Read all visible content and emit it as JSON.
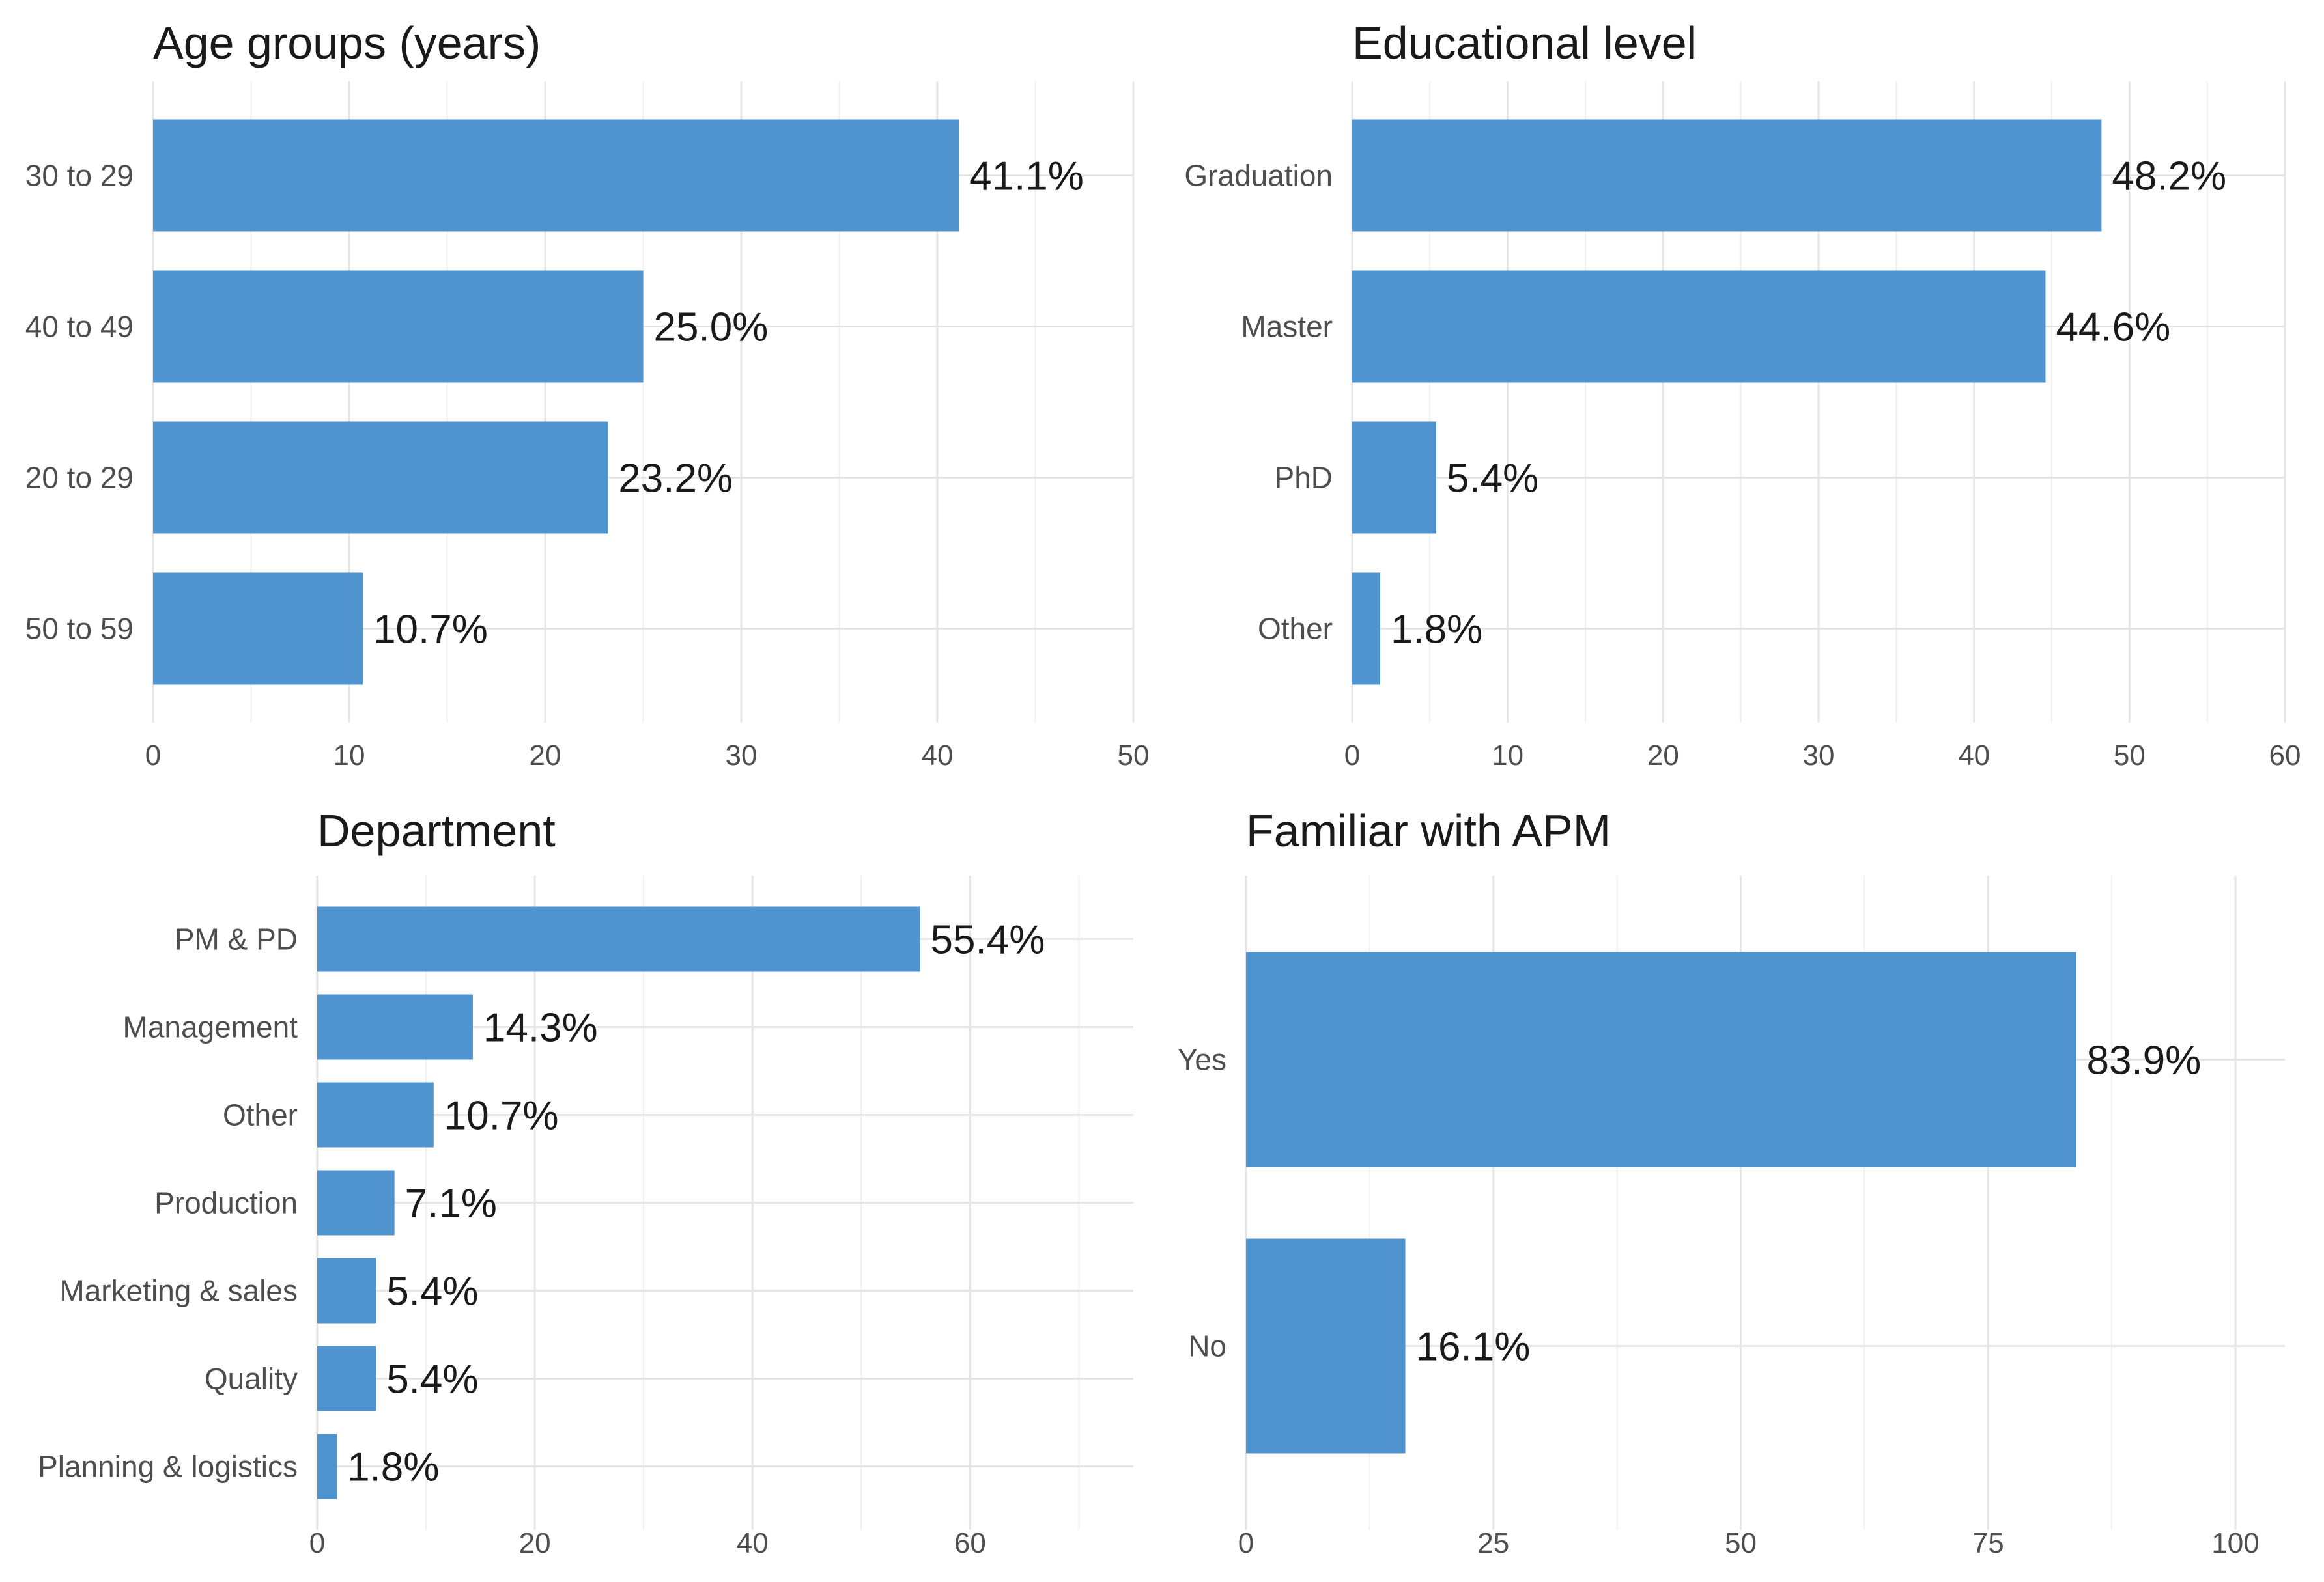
{
  "bar_color": "#4f93cf",
  "chart_data": [
    {
      "type": "bar",
      "orientation": "horizontal",
      "title": "Age groups (years)",
      "categories": [
        "30 to 29",
        "40 to 49",
        "20 to 29",
        "50 to 59"
      ],
      "values": [
        41.1,
        25.0,
        23.2,
        10.7
      ],
      "labels": [
        "41.1%",
        "25.0%",
        "23.2%",
        "10.7%"
      ],
      "xlim": [
        0,
        50
      ],
      "xticks": [
        0,
        10,
        20,
        30,
        40,
        50
      ],
      "grid": true
    },
    {
      "type": "bar",
      "orientation": "horizontal",
      "title": "Educational level",
      "categories": [
        "Graduation",
        "Master",
        "PhD",
        "Other"
      ],
      "values": [
        48.2,
        44.6,
        5.4,
        1.8
      ],
      "labels": [
        "48.2%",
        "44.6%",
        "5.4%",
        "1.8%"
      ],
      "xlim": [
        0,
        60
      ],
      "xticks": [
        0,
        10,
        20,
        30,
        40,
        50,
        60
      ],
      "grid": true
    },
    {
      "type": "bar",
      "orientation": "horizontal",
      "title": "Department",
      "categories": [
        "PM & PD",
        "Management",
        "Other",
        "Production",
        "Marketing & sales",
        "Quality",
        "Planning & logistics"
      ],
      "values": [
        55.4,
        14.3,
        10.7,
        7.1,
        5.4,
        5.4,
        1.8
      ],
      "labels": [
        "55.4%",
        "14.3%",
        "10.7%",
        "7.1%",
        "5.4%",
        "5.4%",
        "1.8%"
      ],
      "xlim": [
        0,
        75
      ],
      "xticks": [
        0,
        20,
        40,
        60
      ],
      "grid": true
    },
    {
      "type": "bar",
      "orientation": "horizontal",
      "title": "Familiar with APM",
      "categories": [
        "Yes",
        "No"
      ],
      "values": [
        83.9,
        16.1
      ],
      "labels": [
        "83.9%",
        "16.1%"
      ],
      "xlim": [
        0,
        105
      ],
      "xticks": [
        0,
        25,
        50,
        75,
        100
      ],
      "grid": true
    }
  ]
}
